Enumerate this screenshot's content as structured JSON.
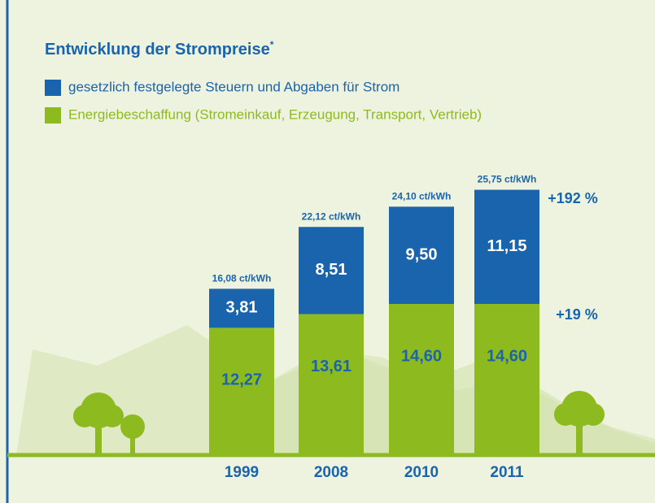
{
  "chart_data": {
    "type": "stacked-bar",
    "title": "Entwicklung der Strompreise",
    "title_mark": "*",
    "categories": [
      "1999",
      "2008",
      "2010",
      "2011"
    ],
    "series": [
      {
        "name": "Energiebeschaffung (Stromeinkauf, Erzeugung, Transport, Vertrieb)",
        "color": "#8dbb1f",
        "values": [
          12.27,
          13.61,
          14.6,
          14.6
        ],
        "value_labels": [
          "12,27",
          "13,61",
          "14,60",
          "14,60"
        ]
      },
      {
        "name": "gesetzlich festgelegte Steuern und Abgaben für Strom",
        "color": "#1a64ad",
        "values": [
          3.81,
          8.51,
          9.5,
          11.15
        ],
        "value_labels": [
          "3,81",
          "8,51",
          "9,50",
          "11,15"
        ]
      }
    ],
    "total_labels": [
      "16,08 ct/kWh",
      "22,12 ct/kWh",
      "24,10 ct/kWh",
      "25,75 ct/kWh"
    ],
    "annotations": [
      "+192 %",
      "+19 %"
    ]
  }
}
